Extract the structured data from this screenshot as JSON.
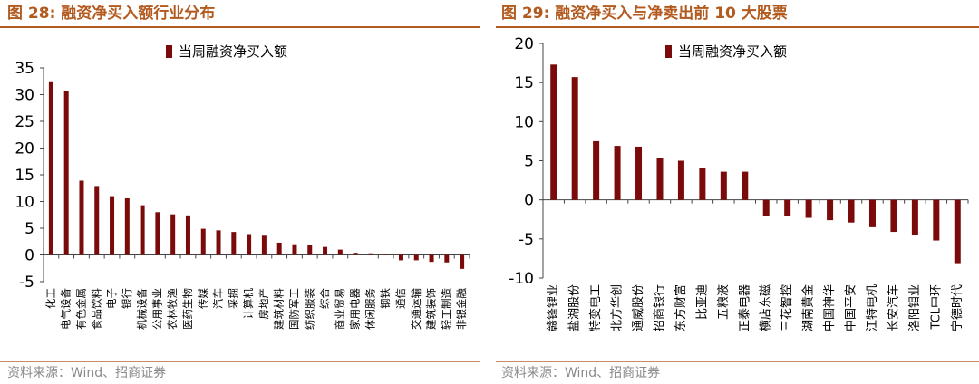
{
  "left_figure": {
    "title": "图 28:  融资净买入额行业分布",
    "source": "资料来源：Wind、招商证券"
  },
  "right_figure": {
    "title": "图 29:  融资净买入与净卖出前 10 大股票",
    "source": "资料来源：Wind、招商证券"
  },
  "colors": {
    "bar": "#7b0a0a",
    "accent": "#b35a1f",
    "axis": "#444444"
  },
  "chart_data": [
    {
      "type": "bar",
      "title": "",
      "legend": [
        "当周融资净买入额"
      ],
      "legend_position": "top-center",
      "categories": [
        "化工",
        "电气设备",
        "有色金属",
        "食品饮料",
        "电子",
        "银行",
        "机械设备",
        "公用事业",
        "农林牧渔",
        "医药生物",
        "传媒",
        "汽车",
        "采掘",
        "计算机",
        "房地产",
        "建筑材料",
        "国防军工",
        "纺织服装",
        "综合",
        "商业贸易",
        "家用电器",
        "休闲服务",
        "钢铁",
        "通信",
        "交通运输",
        "建筑装饰",
        "轻工制造",
        "非银金融"
      ],
      "values": [
        32.5,
        30.6,
        13.9,
        12.9,
        11.0,
        10.6,
        9.3,
        8.0,
        7.6,
        7.4,
        4.9,
        4.6,
        4.3,
        3.9,
        3.6,
        2.3,
        2.0,
        1.9,
        1.5,
        1.0,
        0.4,
        0.3,
        0.2,
        -1.0,
        -1.0,
        -1.3,
        -1.4,
        -2.6
      ],
      "xlabel": "",
      "ylabel": "",
      "ylim": [
        -5,
        35
      ],
      "yticks": [
        -5,
        0,
        5,
        10,
        15,
        20,
        25,
        30,
        35
      ],
      "grid": false
    },
    {
      "type": "bar",
      "title": "",
      "legend": [
        "当周融资净买入额"
      ],
      "legend_position": "top-center",
      "categories": [
        "赣锋锂业",
        "盐湖股份",
        "特变电工",
        "北方华创",
        "通威股份",
        "招商银行",
        "东方财富",
        "比亚迪",
        "五粮液",
        "正泰电器",
        "横店东磁",
        "三花智控",
        "湖南黄金",
        "中国神华",
        "中国平安",
        "江特电机",
        "长安汽车",
        "洛阳钼业",
        "TCL中环",
        "宁德时代"
      ],
      "values": [
        17.3,
        15.7,
        7.5,
        6.9,
        6.8,
        5.3,
        5.0,
        4.1,
        3.6,
        3.6,
        -2.1,
        -2.1,
        -2.3,
        -2.6,
        -2.9,
        -3.5,
        -4.1,
        -4.5,
        -5.2,
        -8.1
      ],
      "xlabel": "",
      "ylabel": "",
      "ylim": [
        -10,
        20
      ],
      "yticks": [
        -10,
        -5,
        0,
        5,
        10,
        15,
        20
      ],
      "grid": false
    }
  ]
}
